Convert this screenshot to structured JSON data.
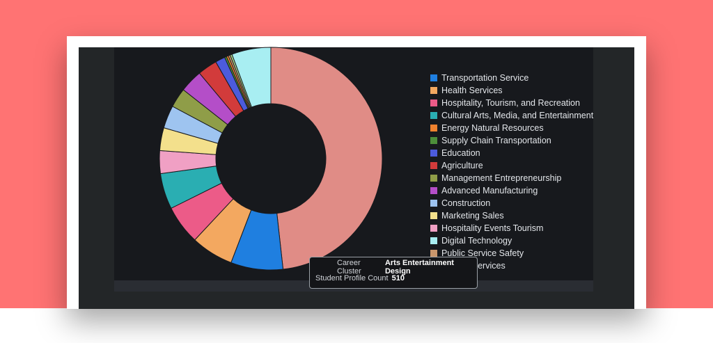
{
  "chart_data": {
    "type": "pie",
    "donut": true,
    "legend_position": "right",
    "categories": [
      "Arts Entertainment Design",
      "Transportation Service",
      "Health Services",
      "Hospitality, Tourism, and Recreation",
      "Cultural Arts, Media, and Entertainment",
      "Energy Natural Resources",
      "Supply Chain Transportation",
      "Education",
      "Agriculture",
      "Management Entrepreneurship",
      "Advanced Manufacturing",
      "Construction",
      "Marketing Sales",
      "Hospitality Events Tourism",
      "Digital Technology",
      "Public Service Safety",
      "Human Services"
    ],
    "values": [
      510,
      80,
      65,
      60,
      55,
      3,
      3,
      15,
      30,
      30,
      35,
      35,
      35,
      35,
      60,
      3,
      3
    ],
    "colors": [
      "#e08c86",
      "#1f7fe0",
      "#f3a860",
      "#ec5b88",
      "#2aaeb2",
      "#f0822e",
      "#4d8e3a",
      "#4c5bdc",
      "#d23b3b",
      "#8f9d48",
      "#b44ec8",
      "#9ec4f0",
      "#f3e08c",
      "#f0a0c4",
      "#a8eef2",
      "#c9966c",
      "#a8d88e"
    ],
    "legend_entries": [
      "Transportation Service",
      "Health Services",
      "Hospitality, Tourism, and Recreation",
      "Cultural Arts, Media, and Entertainment",
      "Energy Natural Resources",
      "Supply Chain Transportation",
      "Education",
      "Agriculture",
      "Management Entrepreneurship",
      "Advanced Manufacturing",
      "Construction",
      "Marketing Sales",
      "Hospitality Events Tourism",
      "Digital Technology",
      "Public Service Safety",
      "Human Services"
    ],
    "legend_colors": [
      "#1f7fe0",
      "#f3a860",
      "#ec5b88",
      "#2aaeb2",
      "#f0822e",
      "#4d8e3a",
      "#4c5bdc",
      "#d23b3b",
      "#8f9d48",
      "#b44ec8",
      "#9ec4f0",
      "#f3e08c",
      "#f0a0c4",
      "#a8eef2",
      "#c9966c",
      "#a8d88e"
    ],
    "slice_order_clockwise": [
      "Arts Entertainment Design",
      "Transportation Service",
      "Health Services",
      "Hospitality, Tourism, and Recreation",
      "Cultural Arts, Media, and Entertainment",
      "Hospitality Events Tourism",
      "Marketing Sales",
      "Construction",
      "Management Entrepreneurship",
      "Advanced Manufacturing",
      "Agriculture",
      "Education",
      "Supply Chain Transportation",
      "Energy Natural Resources",
      "Public Service Safety",
      "Human Services",
      "Digital Technology"
    ]
  },
  "tooltip": {
    "label_1": "Career Cluster",
    "value_1": "Arts Entertainment Design",
    "label_2": "Student Profile Count",
    "value_2": "510"
  }
}
